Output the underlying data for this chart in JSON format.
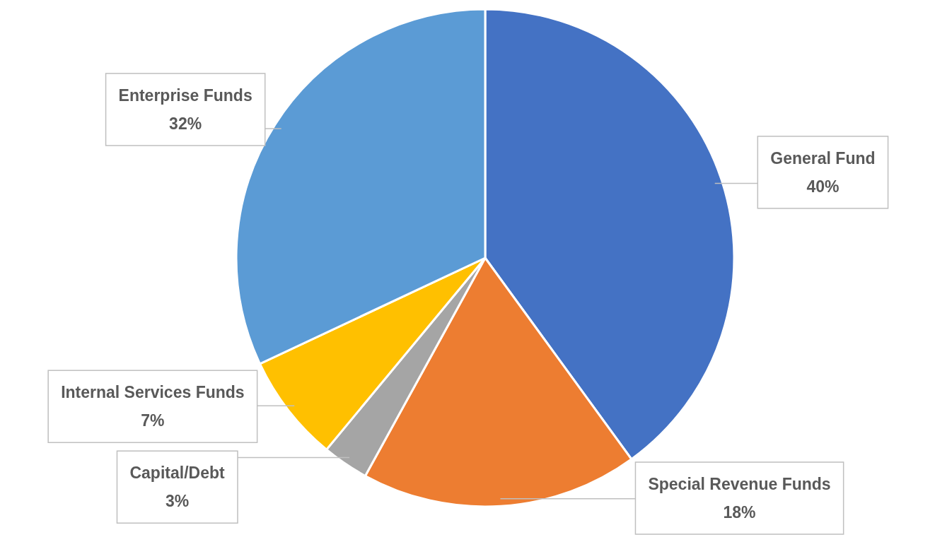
{
  "chart_data": {
    "type": "pie",
    "categories": [
      "General Fund",
      "Special Revenue Funds",
      "Capital/Debt",
      "Internal Services Funds",
      "Enterprise Funds"
    ],
    "values": [
      40,
      18,
      3,
      7,
      32
    ],
    "value_labels": [
      "40%",
      "18%",
      "3%",
      "7%",
      "32%"
    ],
    "colors": [
      "#4472c4",
      "#ed7d31",
      "#a5a5a5",
      "#ffc000",
      "#5b9bd5"
    ]
  }
}
